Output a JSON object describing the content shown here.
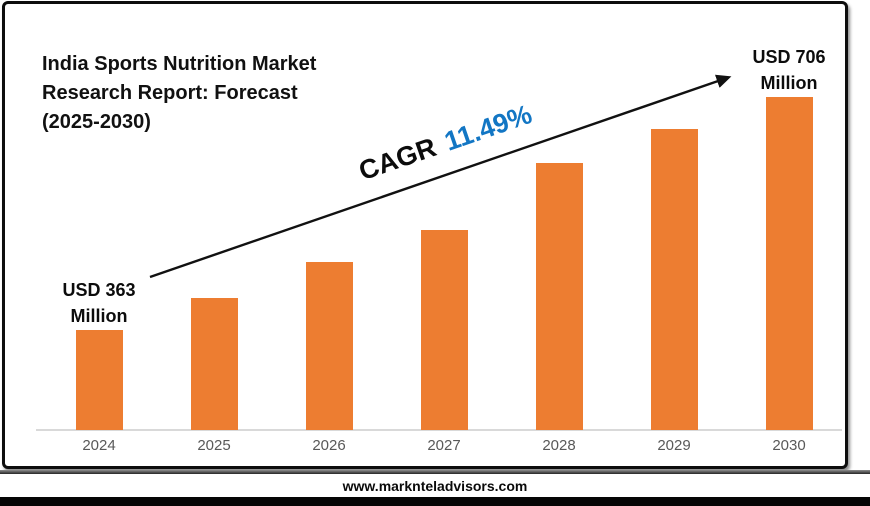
{
  "chart": {
    "title_lines": [
      "India Sports Nutrition Market",
      "Research Report: Forecast",
      "(2025-2030)"
    ]
  },
  "annotations": {
    "cagr_prefix": "CAGR",
    "cagr_value": "11.49%"
  },
  "footer": {
    "url": "www.marknteladvisors.com"
  },
  "colors": {
    "bar": "#ED7D31",
    "cagr_value_text": "#1276C4",
    "axis_line": "#D9D9D9",
    "tick_text": "#595959",
    "title_text": "#111111",
    "arrow": "#111111"
  },
  "chart_data": {
    "type": "bar",
    "categories": [
      "2024",
      "2025",
      "2026",
      "2027",
      "2028",
      "2029",
      "2030"
    ],
    "values": [
      363,
      410,
      462,
      510,
      608,
      658,
      706
    ],
    "value_unit": "USD Million",
    "title": "India Sports Nutrition Market Research Report: Forecast (2025-2030)",
    "xlabel": "",
    "ylabel": "",
    "ylim": [
      215,
      725
    ],
    "grid": false,
    "legend": false,
    "y_axis_hidden": true,
    "annotation": "CAGR 11.49%",
    "value_labels": [
      {
        "category": "2024",
        "lines": [
          "USD 363",
          "Million"
        ]
      },
      {
        "category": "2030",
        "lines": [
          "USD 706",
          "Million"
        ]
      }
    ]
  }
}
